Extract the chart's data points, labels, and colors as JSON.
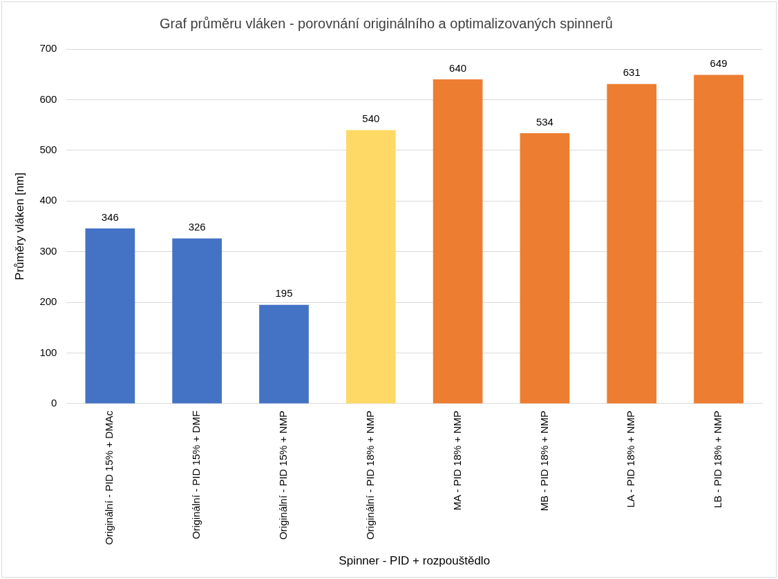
{
  "chart_data": {
    "type": "bar",
    "title": "Graf průměru vláken - porovnání originálního a optimalizovaných spinnerů",
    "xlabel": "Spinner - PID + rozpouštědlo",
    "ylabel": "Průměry vláken [nm]",
    "categories": [
      "Originální - PID 15% + DMAc",
      "Originální - PID 15% + DMF",
      "Originální - PID 15% + NMP",
      "Originální - PID 18% + NMP",
      "MA - PID 18% + NMP",
      "MB - PID 18% + NMP",
      "LA - PID 18% + NMP",
      "LB - PID 18% + NMP"
    ],
    "values": [
      346,
      326,
      195,
      540,
      640,
      534,
      631,
      649
    ],
    "colors": [
      "#4472c4",
      "#4472c4",
      "#4472c4",
      "#ffd966",
      "#ed7d31",
      "#ed7d31",
      "#ed7d31",
      "#ed7d31"
    ],
    "ylim": [
      0,
      700
    ],
    "yticks": [
      0,
      100,
      200,
      300,
      400,
      500,
      600,
      700
    ],
    "grid": "y",
    "data_labels": true,
    "legend": false
  }
}
